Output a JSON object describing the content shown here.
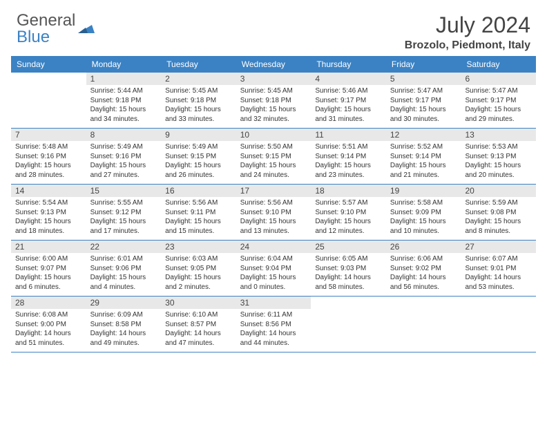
{
  "logo": {
    "text1": "General",
    "text2": "Blue"
  },
  "title": "July 2024",
  "location": "Brozolo, Piedmont, Italy",
  "colors": {
    "accent": "#3b82c4",
    "header_bg": "#3b82c4",
    "daynum_bg": "#e8e8e8",
    "text": "#444444",
    "body_bg": "#ffffff"
  },
  "day_names": [
    "Sunday",
    "Monday",
    "Tuesday",
    "Wednesday",
    "Thursday",
    "Friday",
    "Saturday"
  ],
  "weeks": [
    [
      null,
      {
        "n": "1",
        "sr": "5:44 AM",
        "ss": "9:18 PM",
        "dl": "15 hours and 34 minutes."
      },
      {
        "n": "2",
        "sr": "5:45 AM",
        "ss": "9:18 PM",
        "dl": "15 hours and 33 minutes."
      },
      {
        "n": "3",
        "sr": "5:45 AM",
        "ss": "9:18 PM",
        "dl": "15 hours and 32 minutes."
      },
      {
        "n": "4",
        "sr": "5:46 AM",
        "ss": "9:17 PM",
        "dl": "15 hours and 31 minutes."
      },
      {
        "n": "5",
        "sr": "5:47 AM",
        "ss": "9:17 PM",
        "dl": "15 hours and 30 minutes."
      },
      {
        "n": "6",
        "sr": "5:47 AM",
        "ss": "9:17 PM",
        "dl": "15 hours and 29 minutes."
      }
    ],
    [
      {
        "n": "7",
        "sr": "5:48 AM",
        "ss": "9:16 PM",
        "dl": "15 hours and 28 minutes."
      },
      {
        "n": "8",
        "sr": "5:49 AM",
        "ss": "9:16 PM",
        "dl": "15 hours and 27 minutes."
      },
      {
        "n": "9",
        "sr": "5:49 AM",
        "ss": "9:15 PM",
        "dl": "15 hours and 26 minutes."
      },
      {
        "n": "10",
        "sr": "5:50 AM",
        "ss": "9:15 PM",
        "dl": "15 hours and 24 minutes."
      },
      {
        "n": "11",
        "sr": "5:51 AM",
        "ss": "9:14 PM",
        "dl": "15 hours and 23 minutes."
      },
      {
        "n": "12",
        "sr": "5:52 AM",
        "ss": "9:14 PM",
        "dl": "15 hours and 21 minutes."
      },
      {
        "n": "13",
        "sr": "5:53 AM",
        "ss": "9:13 PM",
        "dl": "15 hours and 20 minutes."
      }
    ],
    [
      {
        "n": "14",
        "sr": "5:54 AM",
        "ss": "9:13 PM",
        "dl": "15 hours and 18 minutes."
      },
      {
        "n": "15",
        "sr": "5:55 AM",
        "ss": "9:12 PM",
        "dl": "15 hours and 17 minutes."
      },
      {
        "n": "16",
        "sr": "5:56 AM",
        "ss": "9:11 PM",
        "dl": "15 hours and 15 minutes."
      },
      {
        "n": "17",
        "sr": "5:56 AM",
        "ss": "9:10 PM",
        "dl": "15 hours and 13 minutes."
      },
      {
        "n": "18",
        "sr": "5:57 AM",
        "ss": "9:10 PM",
        "dl": "15 hours and 12 minutes."
      },
      {
        "n": "19",
        "sr": "5:58 AM",
        "ss": "9:09 PM",
        "dl": "15 hours and 10 minutes."
      },
      {
        "n": "20",
        "sr": "5:59 AM",
        "ss": "9:08 PM",
        "dl": "15 hours and 8 minutes."
      }
    ],
    [
      {
        "n": "21",
        "sr": "6:00 AM",
        "ss": "9:07 PM",
        "dl": "15 hours and 6 minutes."
      },
      {
        "n": "22",
        "sr": "6:01 AM",
        "ss": "9:06 PM",
        "dl": "15 hours and 4 minutes."
      },
      {
        "n": "23",
        "sr": "6:03 AM",
        "ss": "9:05 PM",
        "dl": "15 hours and 2 minutes."
      },
      {
        "n": "24",
        "sr": "6:04 AM",
        "ss": "9:04 PM",
        "dl": "15 hours and 0 minutes."
      },
      {
        "n": "25",
        "sr": "6:05 AM",
        "ss": "9:03 PM",
        "dl": "14 hours and 58 minutes."
      },
      {
        "n": "26",
        "sr": "6:06 AM",
        "ss": "9:02 PM",
        "dl": "14 hours and 56 minutes."
      },
      {
        "n": "27",
        "sr": "6:07 AM",
        "ss": "9:01 PM",
        "dl": "14 hours and 53 minutes."
      }
    ],
    [
      {
        "n": "28",
        "sr": "6:08 AM",
        "ss": "9:00 PM",
        "dl": "14 hours and 51 minutes."
      },
      {
        "n": "29",
        "sr": "6:09 AM",
        "ss": "8:58 PM",
        "dl": "14 hours and 49 minutes."
      },
      {
        "n": "30",
        "sr": "6:10 AM",
        "ss": "8:57 PM",
        "dl": "14 hours and 47 minutes."
      },
      {
        "n": "31",
        "sr": "6:11 AM",
        "ss": "8:56 PM",
        "dl": "14 hours and 44 minutes."
      },
      null,
      null,
      null
    ]
  ],
  "labels": {
    "sunrise": "Sunrise:",
    "sunset": "Sunset:",
    "daylight": "Daylight:"
  }
}
